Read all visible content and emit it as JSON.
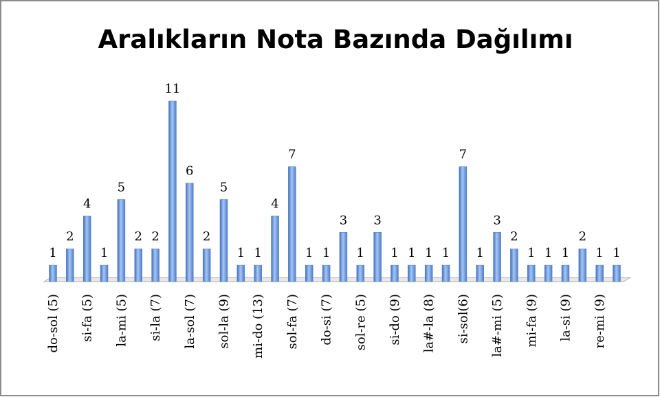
{
  "chart_data": {
    "type": "bar",
    "title": "Aralıkların Nota Bazında Dağılımı",
    "categories": [
      "do-sol (5)",
      null,
      "si-fa (5)",
      null,
      "la-mi (5)",
      null,
      "si-la (7)",
      null,
      "la-sol (7)",
      null,
      "sol-la (9)",
      null,
      "mi-do (13)",
      null,
      "sol-fa (7)",
      null,
      "do-si (7)",
      null,
      "sol-re (5)",
      null,
      "si-do (9)",
      null,
      "la#-la (8)",
      null,
      "si-sol(6)",
      null,
      "la#-mi (5)",
      null,
      "mi-fa (9)",
      null,
      "la-si (9)",
      null,
      "re-mi (9)",
      null
    ],
    "values": [
      1,
      2,
      4,
      1,
      5,
      2,
      2,
      11,
      6,
      2,
      5,
      1,
      1,
      4,
      7,
      1,
      1,
      3,
      1,
      3,
      1,
      1,
      1,
      1,
      7,
      1,
      3,
      2,
      1,
      1,
      1,
      2,
      1,
      1
    ],
    "color": "#4f81bd"
  }
}
